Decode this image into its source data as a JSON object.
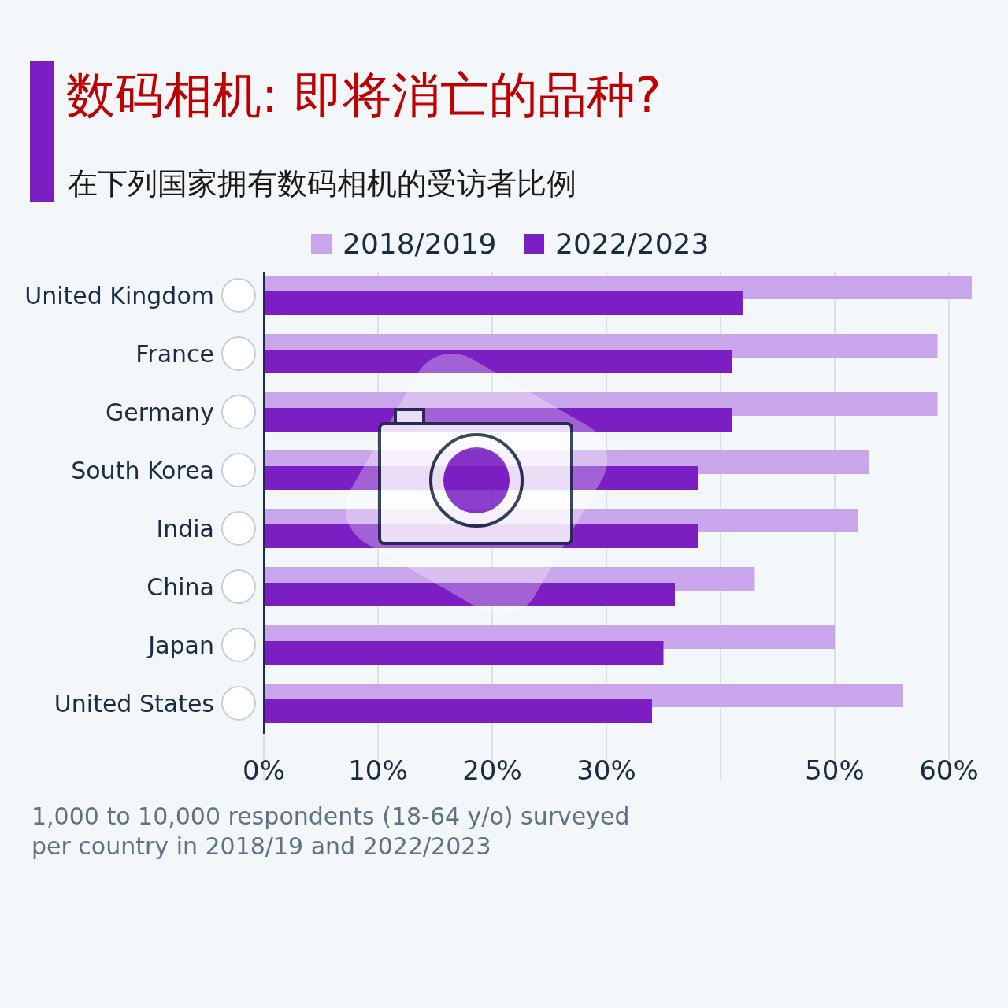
{
  "chart_data": {
    "type": "bar",
    "orientation": "horizontal",
    "title": "数码相机: 即将消亡的品种?",
    "subtitle": "在下列国家拥有数码相机的受访者比例",
    "categories": [
      "United Kingdom",
      "France",
      "Germany",
      "South Korea",
      "India",
      "China",
      "Japan",
      "United States"
    ],
    "series": [
      {
        "name": "2018/2019",
        "color": "#c9a6ec",
        "values": [
          62,
          59,
          59,
          53,
          52,
          43,
          50,
          56
        ]
      },
      {
        "name": "2022/2023",
        "color": "#7b1fc2",
        "values": [
          42,
          41,
          41,
          38,
          38,
          36,
          35,
          34
        ]
      }
    ],
    "xlim": [
      0,
      62
    ],
    "xticks": [
      {
        "value": 0,
        "label": "0%"
      },
      {
        "value": 10,
        "label": "10%"
      },
      {
        "value": 20,
        "label": "20%"
      },
      {
        "value": 30,
        "label": "30%"
      },
      {
        "value": 40,
        "label": null
      },
      {
        "value": 50,
        "label": "50%"
      },
      {
        "value": 60,
        "label": "60%"
      }
    ],
    "grid": "x",
    "legend": "top",
    "annotations": [
      "1,000 to 10,000 respondents (18-64 y/o) surveyed per country in 2018/19 and 2022/2023"
    ]
  }
}
